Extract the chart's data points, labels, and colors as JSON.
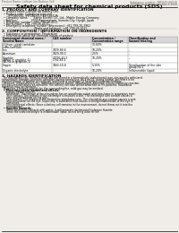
{
  "bg_color": "#f0ede8",
  "header_left": "Product Name: Lithium Ion Battery Cell",
  "header_right_line1": "Substance number: SBF049-00010",
  "header_right_line2": "Established / Revision: Dec.1 2010",
  "title": "Safety data sheet for chemical products (SDS)",
  "section1_title": "1. PRODUCT AND COMPANY IDENTIFICATION",
  "section1_lines": [
    "  • Product name: Lithium Ion Battery Cell",
    "  • Product code: Cylindrical-type cell",
    "       SYF18650U, SYF18650U, SYF18650A",
    "  • Company name:      Sanyo Electric Co., Ltd., Mobile Energy Company",
    "  • Address:               2001 Kamiosatomi, Sumoto-City, Hyogo, Japan",
    "  • Telephone number:  +81-799-26-4111",
    "  • Fax number:  +81-799-26-4121",
    "  • Emergency telephone number (Afternoons): +81-799-26-3962",
    "                                    (Night and holidays): +81-799-26-4121"
  ],
  "section2_title": "2. COMPOSITION / INFORMATION ON INGREDIENTS",
  "section2_intro": "  • Substance or preparation: Preparation",
  "section2_sub": "  • Information about the chemical nature of product:",
  "table_col_headers": [
    "Component chemical name /\nSeveral Name",
    "CAS number",
    "Concentration /\nConcentration range",
    "Classification and\nhazard labeling"
  ],
  "table_rows": [
    [
      "Lithium cobalt tantalate\n(LiMn-Co(PO4))",
      "-",
      "30-60%",
      ""
    ],
    [
      "Iron",
      "7439-89-6",
      "10-20%",
      "-"
    ],
    [
      "Aluminum",
      "7429-90-5",
      "2-5%",
      "-"
    ],
    [
      "Graphite\n(Amid or graphite-1)\n(AI-Mo or graphite-1)",
      "77792-42-5\n7782-44-2",
      "10-20%",
      "-"
    ],
    [
      "Copper",
      "7440-50-8",
      "5-15%",
      "Sensitization of the skin\ngroup No.2"
    ],
    [
      "Organic electrolyte",
      "-",
      "10-20%",
      "Inflammable liquid"
    ]
  ],
  "section3_title": "3. HAZARDS IDENTIFICATION",
  "section3_para": [
    "  For this battery cell, chemical materials are stored in a hermetically sealed metal case, designed to withstand",
    "temperature changes, pressure variations during normal use. As a result, during normal use, there is no",
    "physical danger of ignition or explosion and there is no danger of hazardous materials leakage.",
    "  However, if exposed to a fire, added mechanical shocks, decomposed, abnormal electro-chemistry reaction,",
    "the gas created cannot be operated. The battery cell case will be breached at fire patterns. Hazardous",
    "materials may be released.",
    "  Moreover, if heated strongly by the surrounding fire, solid gas may be emitted."
  ],
  "section3_bullet1": "  • Most important hazard and effects:",
  "section3_human": "    Human health effects:",
  "section3_human_lines": [
    "      Inhalation: The release of the electrolyte has an anesthesia action and stimulates in respiratory tract.",
    "      Skin contact: The release of the electrolyte stimulates a skin. The electrolyte skin contact causes a",
    "      sore and stimulation on the skin.",
    "      Eye contact: The release of the electrolyte stimulates eyes. The electrolyte eye contact causes a sore",
    "      and stimulation on the eye. Especially, a substance that causes a strong inflammation of the eye is",
    "      contained.",
    "      Environmental effects: Since a battery cell remains in the environment, do not throw out it into the",
    "      environment."
  ],
  "section3_bullet2": "  • Specific hazards:",
  "section3_specific": [
    "      If the electrolyte contacts with water, it will generate detrimental hydrogen fluoride.",
    "      Since the used electrolyte is inflammable liquid, do not bring close to fire."
  ]
}
